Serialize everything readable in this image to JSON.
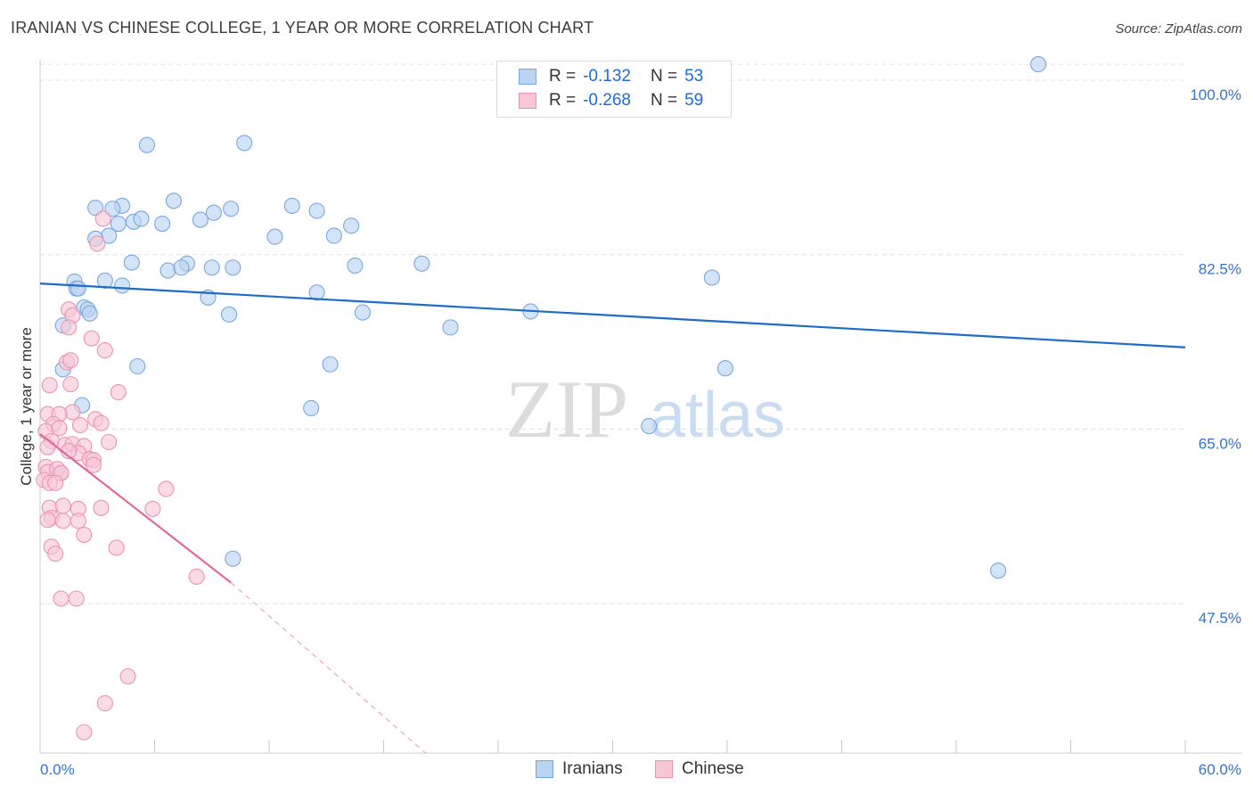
{
  "header": {
    "title": "IRANIAN VS CHINESE COLLEGE, 1 YEAR OR MORE CORRELATION CHART",
    "source": "Source: ZipAtlas.com"
  },
  "watermark": {
    "zip": "ZIP",
    "atlas": "atlas"
  },
  "stats": {
    "iranians": {
      "r_label": "R =",
      "r_value": "-0.132",
      "n_label": "N =",
      "n_value": "53"
    },
    "chinese": {
      "r_label": "R =",
      "r_value": "-0.268",
      "n_label": "N =",
      "n_value": "59"
    }
  },
  "legend": {
    "iranians": "Iranians",
    "chinese": "Chinese"
  },
  "colors": {
    "iranians_fill": "#b9d3f3",
    "iranians_stroke": "#7aa6de",
    "iranians_line": "#1f6bc8",
    "chinese_fill": "#f8c7d6",
    "chinese_stroke": "#ec92b1",
    "chinese_line": "#e3689a",
    "tick_text": "#3573c8",
    "grid": "#e2e2e2"
  },
  "chart_data": {
    "type": "scatter",
    "title": "IRANIAN VS CHINESE COLLEGE, 1 YEAR OR MORE CORRELATION CHART",
    "xlabel": "",
    "ylabel": "College, 1 year or more",
    "xlim": [
      0,
      60
    ],
    "ylim": [
      32.5,
      102.5
    ],
    "x_tick_labels": [
      {
        "value": 0,
        "label": "0.0%"
      },
      {
        "value": 60,
        "label": "60.0%"
      }
    ],
    "y_tick_labels": [
      {
        "value": 100,
        "label": "100.0%"
      },
      {
        "value": 82.5,
        "label": "82.5%"
      },
      {
        "value": 65,
        "label": "65.0%"
      },
      {
        "value": 47.5,
        "label": "47.5%"
      }
    ],
    "x_minor_ticks": [
      6,
      12,
      18,
      24,
      30,
      36,
      42,
      48,
      54,
      60
    ],
    "series": [
      {
        "name": "Iranians",
        "r": -0.132,
        "n": 53,
        "trend": {
          "x": [
            0,
            60
          ],
          "y": [
            79.6,
            73.2
          ]
        },
        "points": [
          [
            52.3,
            101.6
          ],
          [
            5.6,
            93.5
          ],
          [
            10.7,
            93.7
          ],
          [
            4.3,
            87.4
          ],
          [
            7.0,
            87.9
          ],
          [
            2.9,
            87.2
          ],
          [
            3.8,
            87.1
          ],
          [
            4.9,
            85.8
          ],
          [
            5.3,
            86.1
          ],
          [
            8.4,
            86.0
          ],
          [
            9.1,
            86.7
          ],
          [
            10.0,
            87.1
          ],
          [
            13.2,
            87.4
          ],
          [
            14.5,
            86.9
          ],
          [
            4.1,
            85.6
          ],
          [
            3.6,
            84.4
          ],
          [
            2.9,
            84.1
          ],
          [
            6.4,
            85.6
          ],
          [
            12.3,
            84.3
          ],
          [
            16.3,
            85.4
          ],
          [
            15.4,
            84.4
          ],
          [
            4.8,
            81.7
          ],
          [
            3.4,
            79.9
          ],
          [
            4.3,
            79.4
          ],
          [
            1.8,
            79.8
          ],
          [
            1.9,
            79.1
          ],
          [
            2.0,
            79.1
          ],
          [
            6.7,
            80.9
          ],
          [
            7.7,
            81.6
          ],
          [
            7.4,
            81.2
          ],
          [
            9.0,
            81.2
          ],
          [
            10.1,
            81.2
          ],
          [
            16.5,
            81.4
          ],
          [
            20.0,
            81.6
          ],
          [
            35.2,
            80.2
          ],
          [
            8.8,
            78.2
          ],
          [
            14.5,
            78.7
          ],
          [
            2.3,
            77.2
          ],
          [
            2.5,
            77.0
          ],
          [
            2.6,
            76.6
          ],
          [
            1.2,
            75.4
          ],
          [
            9.9,
            76.5
          ],
          [
            16.9,
            76.7
          ],
          [
            25.7,
            76.8
          ],
          [
            21.5,
            75.2
          ],
          [
            5.1,
            71.3
          ],
          [
            15.2,
            71.5
          ],
          [
            1.2,
            71.0
          ],
          [
            2.2,
            67.4
          ],
          [
            14.2,
            67.1
          ],
          [
            31.9,
            65.3
          ],
          [
            35.9,
            71.1
          ],
          [
            10.1,
            52.0
          ],
          [
            50.2,
            50.8
          ],
          [
            1.1,
            60.6
          ]
        ]
      },
      {
        "name": "Chinese",
        "r": -0.268,
        "n": 59,
        "trend": {
          "x": [
            0,
            10.0
          ],
          "y": [
            64.5,
            49.6
          ]
        },
        "trend_dashed": {
          "x": [
            10.0,
            20.2
          ],
          "y": [
            49.6,
            32.5
          ]
        },
        "points": [
          [
            3.3,
            86.1
          ],
          [
            3.0,
            83.6
          ],
          [
            1.5,
            77.0
          ],
          [
            1.7,
            76.4
          ],
          [
            1.5,
            75.2
          ],
          [
            2.7,
            74.1
          ],
          [
            3.4,
            72.9
          ],
          [
            1.4,
            71.7
          ],
          [
            1.6,
            71.9
          ],
          [
            1.6,
            69.5
          ],
          [
            4.1,
            68.7
          ],
          [
            0.5,
            69.4
          ],
          [
            0.4,
            66.5
          ],
          [
            1.7,
            66.7
          ],
          [
            1.0,
            66.5
          ],
          [
            0.7,
            65.5
          ],
          [
            2.1,
            65.4
          ],
          [
            2.9,
            66.0
          ],
          [
            3.2,
            65.6
          ],
          [
            0.3,
            64.8
          ],
          [
            1.0,
            65.1
          ],
          [
            0.6,
            63.8
          ],
          [
            0.4,
            63.2
          ],
          [
            1.3,
            63.4
          ],
          [
            1.7,
            63.5
          ],
          [
            2.3,
            63.3
          ],
          [
            3.6,
            63.7
          ],
          [
            2.0,
            62.6
          ],
          [
            2.6,
            62.0
          ],
          [
            2.8,
            61.9
          ],
          [
            0.3,
            61.2
          ],
          [
            0.4,
            60.7
          ],
          [
            0.9,
            61.0
          ],
          [
            1.1,
            60.6
          ],
          [
            0.2,
            59.9
          ],
          [
            0.5,
            59.6
          ],
          [
            0.8,
            59.6
          ],
          [
            0.5,
            57.1
          ],
          [
            1.2,
            57.3
          ],
          [
            2.0,
            57.0
          ],
          [
            3.2,
            57.1
          ],
          [
            0.6,
            56.1
          ],
          [
            0.4,
            55.9
          ],
          [
            2.0,
            55.8
          ],
          [
            2.3,
            54.4
          ],
          [
            0.6,
            53.2
          ],
          [
            0.8,
            52.5
          ],
          [
            6.6,
            59.0
          ],
          [
            5.9,
            57.0
          ],
          [
            4.0,
            53.1
          ],
          [
            8.2,
            50.2
          ],
          [
            1.1,
            48.0
          ],
          [
            1.9,
            48.0
          ],
          [
            4.6,
            40.2
          ],
          [
            3.4,
            37.5
          ],
          [
            2.3,
            34.6
          ],
          [
            1.2,
            55.8
          ],
          [
            2.8,
            61.4
          ],
          [
            1.5,
            62.8
          ]
        ]
      }
    ]
  }
}
